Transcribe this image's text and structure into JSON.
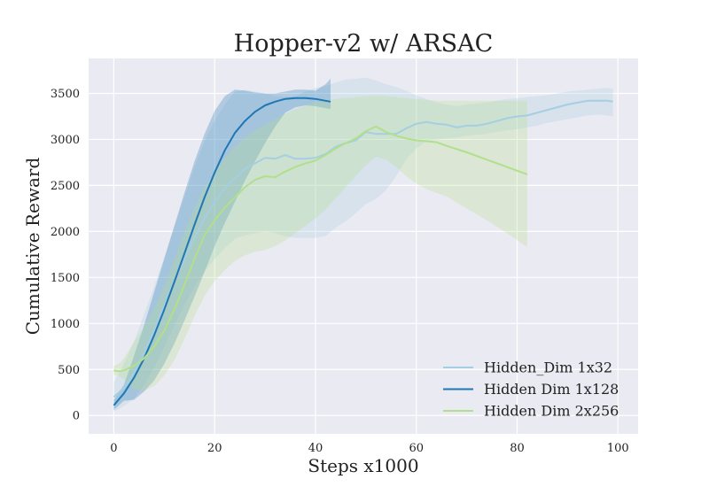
{
  "chart_data": {
    "type": "line",
    "title": "Hopper-v2 w/ ARSAC",
    "xlabel": "Steps x1000",
    "ylabel": "Cumulative Reward",
    "xlim": [
      -5,
      104
    ],
    "ylim": [
      -200,
      3880
    ],
    "xticks": [
      0,
      20,
      40,
      60,
      80,
      100
    ],
    "yticks": [
      0,
      500,
      1000,
      1500,
      2000,
      2500,
      3000,
      3500
    ],
    "grid": true,
    "legend_position": "bottom-right",
    "background_color": "#eaeaf2",
    "series": [
      {
        "name": "Hidden_Dim 1x32",
        "color": "#a6cee3",
        "x": [
          0,
          2,
          4,
          6,
          8,
          10,
          12,
          14,
          16,
          18,
          20,
          22,
          24,
          26,
          28,
          30,
          32,
          34,
          36,
          38,
          40,
          42,
          44,
          46,
          48,
          50,
          52,
          54,
          56,
          58,
          60,
          62,
          64,
          66,
          68,
          70,
          72,
          74,
          76,
          78,
          80,
          82,
          84,
          86,
          88,
          90,
          92,
          94,
          96,
          98,
          99
        ],
        "y": [
          200,
          300,
          460,
          680,
          930,
          1190,
          1450,
          1700,
          1930,
          2140,
          2320,
          2470,
          2580,
          2680,
          2740,
          2800,
          2790,
          2830,
          2790,
          2790,
          2800,
          2840,
          2920,
          2960,
          2990,
          3080,
          3060,
          3060,
          3060,
          3120,
          3170,
          3190,
          3170,
          3160,
          3130,
          3150,
          3150,
          3170,
          3200,
          3230,
          3250,
          3260,
          3290,
          3320,
          3350,
          3380,
          3400,
          3420,
          3420,
          3420,
          3410
        ],
        "lower": [
          40,
          100,
          180,
          330,
          520,
          740,
          980,
          1200,
          1400,
          1570,
          1700,
          1820,
          1920,
          1960,
          1980,
          2000,
          1980,
          1950,
          1930,
          1930,
          1930,
          1950,
          2040,
          2110,
          2200,
          2300,
          2350,
          2450,
          2600,
          2780,
          2900,
          2980,
          3000,
          3010,
          3020,
          3040,
          3050,
          3060,
          3080,
          3100,
          3110,
          3130,
          3150,
          3180,
          3200,
          3220,
          3240,
          3260,
          3270,
          3260,
          3250
        ],
        "upper": [
          360,
          560,
          800,
          1100,
          1400,
          1720,
          2050,
          2380,
          2700,
          2980,
          3200,
          3380,
          3520,
          3540,
          3520,
          3500,
          3470,
          3460,
          3470,
          3520,
          3560,
          3580,
          3620,
          3650,
          3660,
          3670,
          3640,
          3600,
          3570,
          3530,
          3480,
          3440,
          3400,
          3380,
          3360,
          3380,
          3390,
          3400,
          3420,
          3440,
          3450,
          3460,
          3470,
          3480,
          3500,
          3520,
          3530,
          3540,
          3550,
          3560,
          3550
        ]
      },
      {
        "name": "Hidden Dim 1x128",
        "color": "#1f78b4",
        "x": [
          0,
          2,
          4,
          6,
          8,
          10,
          12,
          14,
          16,
          18,
          20,
          22,
          24,
          26,
          28,
          30,
          32,
          34,
          36,
          38,
          40,
          42,
          43
        ],
        "y": [
          110,
          240,
          410,
          620,
          870,
          1150,
          1450,
          1760,
          2070,
          2370,
          2640,
          2880,
          3070,
          3200,
          3300,
          3370,
          3410,
          3440,
          3450,
          3450,
          3440,
          3420,
          3410
        ],
        "lower": [
          60,
          160,
          170,
          260,
          380,
          560,
          780,
          1030,
          1290,
          1560,
          1840,
          2090,
          2320,
          2550,
          2760,
          2960,
          3140,
          3290,
          3350,
          3370,
          3360,
          3340,
          3330
        ],
        "upper": [
          170,
          330,
          650,
          980,
          1340,
          1700,
          2060,
          2420,
          2760,
          3060,
          3310,
          3470,
          3540,
          3530,
          3510,
          3500,
          3500,
          3520,
          3540,
          3540,
          3530,
          3600,
          3660
        ]
      },
      {
        "name": "Hidden Dim 2x256",
        "color": "#b2df8a",
        "x": [
          0,
          1,
          2,
          4,
          6,
          8,
          10,
          12,
          14,
          16,
          18,
          20,
          22,
          24,
          26,
          28,
          30,
          32,
          34,
          36,
          38,
          40,
          42,
          44,
          46,
          48,
          50,
          52,
          54,
          56,
          58,
          60,
          62,
          64,
          66,
          70,
          74,
          78,
          82
        ],
        "y": [
          490,
          480,
          490,
          540,
          620,
          750,
          920,
          1150,
          1420,
          1700,
          1960,
          2120,
          2260,
          2370,
          2480,
          2560,
          2600,
          2590,
          2650,
          2700,
          2740,
          2770,
          2830,
          2900,
          2960,
          3010,
          3090,
          3140,
          3080,
          3040,
          3010,
          2990,
          2980,
          2970,
          2930,
          2860,
          2780,
          2700,
          2620
        ],
        "lower": [
          440,
          430,
          390,
          280,
          270,
          320,
          430,
          600,
          830,
          1080,
          1300,
          1460,
          1580,
          1680,
          1740,
          1780,
          1800,
          1840,
          1900,
          1980,
          2060,
          2140,
          2240,
          2360,
          2480,
          2600,
          2720,
          2810,
          2780,
          2700,
          2600,
          2520,
          2460,
          2420,
          2380,
          2250,
          2120,
          1980,
          1830
        ],
        "upper": [
          540,
          560,
          620,
          800,
          960,
          1160,
          1400,
          1700,
          1990,
          2250,
          2480,
          2640,
          2800,
          2920,
          3020,
          3100,
          3160,
          3220,
          3280,
          3330,
          3370,
          3400,
          3420,
          3440,
          3450,
          3460,
          3470,
          3480,
          3470,
          3460,
          3450,
          3440,
          3430,
          3420,
          3420,
          3420,
          3420,
          3420,
          3420
        ]
      }
    ]
  }
}
